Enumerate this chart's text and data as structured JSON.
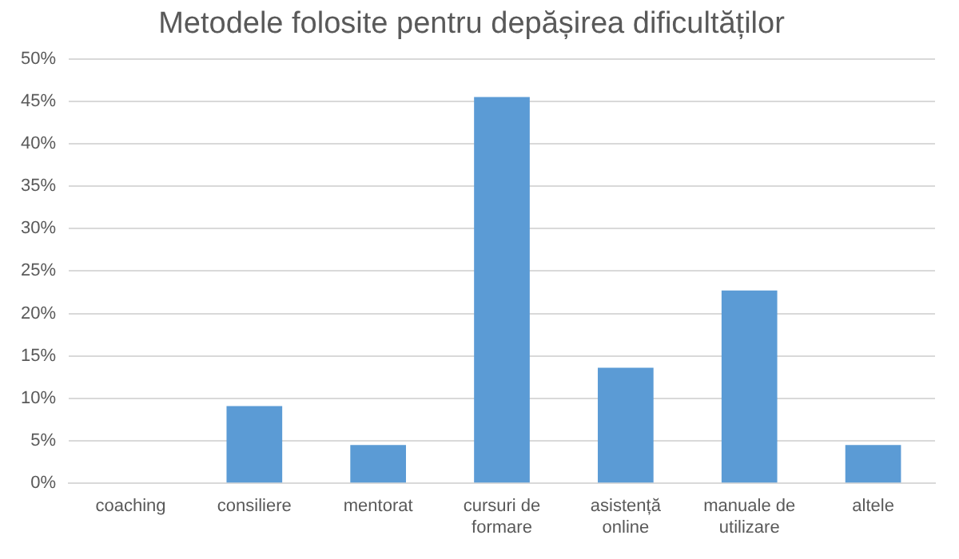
{
  "chart_data": {
    "type": "bar",
    "title": "Metodele folosite pentru depășirea dificultăților",
    "categories": [
      "coaching",
      "consiliere",
      "mentorat",
      "cursuri de formare",
      "asistență online",
      "manuale de utilizare",
      "altele"
    ],
    "values": [
      0,
      9.1,
      4.5,
      45.5,
      13.6,
      22.7,
      4.5
    ],
    "color": "#5b9bd5",
    "ylim": [
      0,
      50
    ],
    "yticks": [
      {
        "value": 0,
        "label": "0%"
      },
      {
        "value": 5,
        "label": "5%"
      },
      {
        "value": 10,
        "label": "10%"
      },
      {
        "value": 15,
        "label": "15%"
      },
      {
        "value": 20,
        "label": "20%"
      },
      {
        "value": 25,
        "label": "25%"
      },
      {
        "value": 30,
        "label": "30%"
      },
      {
        "value": 35,
        "label": "35%"
      },
      {
        "value": 40,
        "label": "40%"
      },
      {
        "value": 45,
        "label": "45%"
      },
      {
        "value": 50,
        "label": "50%"
      }
    ],
    "grid": "y",
    "legend": false
  }
}
